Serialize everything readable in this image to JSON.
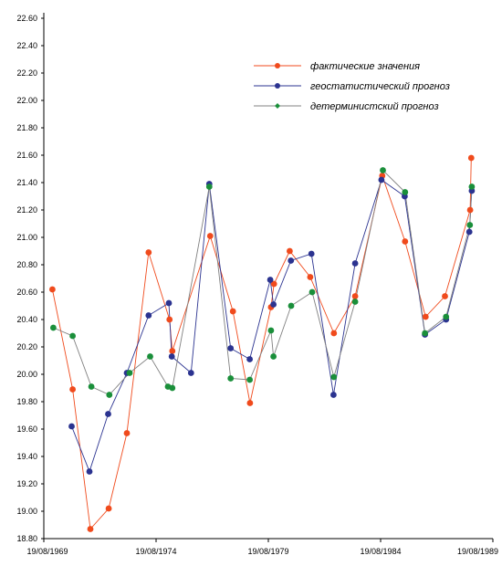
{
  "chart_data": {
    "type": "line",
    "x_type": "date",
    "x_ticks": [
      "19/08/1969",
      "19/08/1974",
      "19/08/1979",
      "19/08/1984",
      "19/08/1989"
    ],
    "y_ticks": [
      "18.80",
      "19.00",
      "19.20",
      "19.40",
      "19.60",
      "19.80",
      "20.00",
      "20.20",
      "20.40",
      "20.60",
      "20.80",
      "21.00",
      "21.20",
      "21.40",
      "21.60",
      "21.80",
      "22.00",
      "22.20",
      "22.40",
      "22.60"
    ],
    "ylim": [
      18.8,
      22.6
    ],
    "xlim": [
      "1969-08-19",
      "1989-08-19"
    ],
    "grid": false,
    "legend_position": "top-right",
    "series": [
      {
        "name": "фактические значения",
        "color": "#f04a1c",
        "points": [
          [
            "1970-01-05",
            20.62
          ],
          [
            "1970-12-01",
            19.89
          ],
          [
            "1971-09-15",
            18.87
          ],
          [
            "1972-07-10",
            19.02
          ],
          [
            "1973-05-01",
            19.57
          ],
          [
            "1974-04-20",
            20.89
          ],
          [
            "1975-03-25",
            20.4
          ],
          [
            "1975-05-10",
            20.17
          ],
          [
            "1977-01-15",
            21.01
          ],
          [
            "1978-01-20",
            20.46
          ],
          [
            "1978-10-25",
            19.79
          ],
          [
            "1979-10-01",
            20.49
          ],
          [
            "1979-11-20",
            20.66
          ],
          [
            "1980-08-01",
            20.9
          ],
          [
            "1981-07-01",
            20.71
          ],
          [
            "1982-07-20",
            20.3
          ],
          [
            "1983-07-01",
            20.57
          ],
          [
            "1984-09-15",
            21.45
          ],
          [
            "1985-09-20",
            20.97
          ],
          [
            "1986-08-20",
            20.42
          ],
          [
            "1987-07-01",
            20.57
          ],
          [
            "1988-08-15",
            21.2
          ],
          [
            "1988-09-01",
            21.58
          ]
        ]
      },
      {
        "name": "геостатистический прогноз",
        "color": "#2b3390",
        "points": [
          [
            "1970-11-15",
            19.62
          ],
          [
            "1971-09-01",
            19.29
          ],
          [
            "1972-07-01",
            19.71
          ],
          [
            "1973-05-01",
            20.01
          ],
          [
            "1974-04-20",
            20.43
          ],
          [
            "1975-03-15",
            20.52
          ],
          [
            "1975-05-01",
            20.13
          ],
          [
            "1976-03-10",
            20.01
          ],
          [
            "1977-01-01",
            21.39
          ],
          [
            "1977-12-15",
            20.19
          ],
          [
            "1978-10-20",
            20.11
          ],
          [
            "1979-09-20",
            20.69
          ],
          [
            "1979-11-10",
            20.51
          ],
          [
            "1980-08-20",
            20.83
          ],
          [
            "1981-07-20",
            20.88
          ],
          [
            "1982-07-15",
            19.85
          ],
          [
            "1983-07-01",
            20.81
          ],
          [
            "1984-09-01",
            21.42
          ],
          [
            "1985-09-15",
            21.3
          ],
          [
            "1986-08-10",
            20.29
          ],
          [
            "1987-07-20",
            20.4
          ],
          [
            "1988-08-01",
            21.04
          ],
          [
            "1988-09-10",
            21.34
          ]
        ]
      },
      {
        "name": "детерминистский  прогноз",
        "color": "#1a8f3a",
        "line_color": "#808080",
        "points": [
          [
            "1970-01-20",
            20.34
          ],
          [
            "1970-12-01",
            20.28
          ],
          [
            "1971-10-01",
            19.91
          ],
          [
            "1972-07-20",
            19.85
          ],
          [
            "1973-06-15",
            20.01
          ],
          [
            "1974-05-15",
            20.13
          ],
          [
            "1975-03-01",
            19.91
          ],
          [
            "1975-05-10",
            19.9
          ],
          [
            "1977-01-01",
            21.37
          ],
          [
            "1977-12-15",
            19.97
          ],
          [
            "1978-10-20",
            19.96
          ],
          [
            "1979-10-01",
            20.32
          ],
          [
            "1979-11-10",
            20.13
          ],
          [
            "1980-08-25",
            20.5
          ],
          [
            "1981-08-01",
            20.6
          ],
          [
            "1982-07-20",
            19.98
          ],
          [
            "1983-07-01",
            20.53
          ],
          [
            "1984-09-25",
            21.49
          ],
          [
            "1985-09-20",
            21.33
          ],
          [
            "1986-08-10",
            20.3
          ],
          [
            "1987-07-20",
            20.42
          ],
          [
            "1988-08-10",
            21.09
          ],
          [
            "1988-09-10",
            21.37
          ]
        ]
      }
    ],
    "legend_markers": [
      true,
      true,
      false
    ]
  }
}
